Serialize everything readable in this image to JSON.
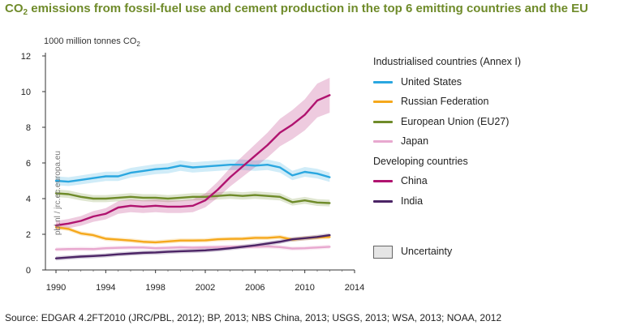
{
  "title_main": "CO",
  "title_sub": "2",
  "title_rest": " emissions from fossil-fuel use and cement production in the top 6 emitting countries and the EU",
  "unit_main": "1000 million tonnes CO",
  "unit_sub": "2",
  "watermark": "pbl.nl / jrc.ec.europa.eu",
  "source": "Source: EDGAR 4.2FT2010 (JRC/PBL, 2012); BP, 2013; NBS China, 2013; USGS, 2013; WSA, 2013; NOAA, 2012",
  "legend": {
    "group1": "Industrialised countries (Annex I)",
    "group2": "Developing countries",
    "uncertainty": "Uncertainty"
  },
  "chart_data": {
    "type": "line",
    "xlim": [
      1990,
      2014
    ],
    "ylim": [
      0,
      12
    ],
    "xticks": [
      1990,
      1994,
      1998,
      2002,
      2006,
      2010,
      2014
    ],
    "yticks": [
      0,
      2,
      4,
      6,
      8,
      10,
      12
    ],
    "grid": false,
    "legend_position": "right",
    "x": [
      1990,
      1991,
      1992,
      1993,
      1994,
      1995,
      1996,
      1997,
      1998,
      1999,
      2000,
      2001,
      2002,
      2003,
      2004,
      2005,
      2006,
      2007,
      2008,
      2009,
      2010,
      2011,
      2012
    ],
    "series": [
      {
        "name": "United States",
        "group": "Industrialised countries (Annex I)",
        "color": "#2aa7e0",
        "values": [
          5.0,
          4.95,
          5.05,
          5.15,
          5.25,
          5.25,
          5.45,
          5.55,
          5.65,
          5.7,
          5.85,
          5.75,
          5.8,
          5.85,
          5.9,
          5.9,
          5.85,
          5.9,
          5.75,
          5.3,
          5.5,
          5.4,
          5.2
        ]
      },
      {
        "name": "Russian Federation",
        "group": "Industrialised countries (Annex I)",
        "color": "#f5a81c",
        "values": [
          2.4,
          2.3,
          2.05,
          1.95,
          1.75,
          1.7,
          1.65,
          1.58,
          1.55,
          1.6,
          1.65,
          1.65,
          1.66,
          1.72,
          1.74,
          1.75,
          1.8,
          1.8,
          1.85,
          1.7,
          1.78,
          1.82,
          1.85
        ]
      },
      {
        "name": "European Union (EU27)",
        "group": "Industrialised countries (Annex I)",
        "color": "#6f8b2a",
        "values": [
          4.3,
          4.25,
          4.1,
          4.0,
          4.0,
          4.05,
          4.1,
          4.05,
          4.05,
          4.0,
          4.05,
          4.1,
          4.1,
          4.15,
          4.2,
          4.15,
          4.2,
          4.15,
          4.1,
          3.8,
          3.9,
          3.78,
          3.75
        ]
      },
      {
        "name": "Japan",
        "group": "Industrialised countries (Annex I)",
        "color": "#e8a8cf",
        "values": [
          1.15,
          1.17,
          1.18,
          1.17,
          1.22,
          1.24,
          1.26,
          1.26,
          1.22,
          1.24,
          1.27,
          1.25,
          1.27,
          1.28,
          1.3,
          1.3,
          1.3,
          1.32,
          1.28,
          1.2,
          1.22,
          1.26,
          1.3
        ]
      },
      {
        "name": "China",
        "group": "Developing countries",
        "color": "#b0136f",
        "values": [
          2.5,
          2.6,
          2.75,
          3.0,
          3.15,
          3.5,
          3.6,
          3.55,
          3.6,
          3.55,
          3.55,
          3.6,
          3.9,
          4.5,
          5.2,
          5.8,
          6.4,
          7.0,
          7.7,
          8.15,
          8.7,
          9.5,
          9.8
        ],
        "uncertainty": 0.1
      },
      {
        "name": "India",
        "group": "Developing countries",
        "color": "#4b2465",
        "values": [
          0.65,
          0.7,
          0.75,
          0.78,
          0.82,
          0.88,
          0.92,
          0.96,
          0.98,
          1.02,
          1.05,
          1.07,
          1.1,
          1.15,
          1.22,
          1.3,
          1.38,
          1.48,
          1.58,
          1.72,
          1.78,
          1.85,
          1.95
        ]
      }
    ]
  }
}
